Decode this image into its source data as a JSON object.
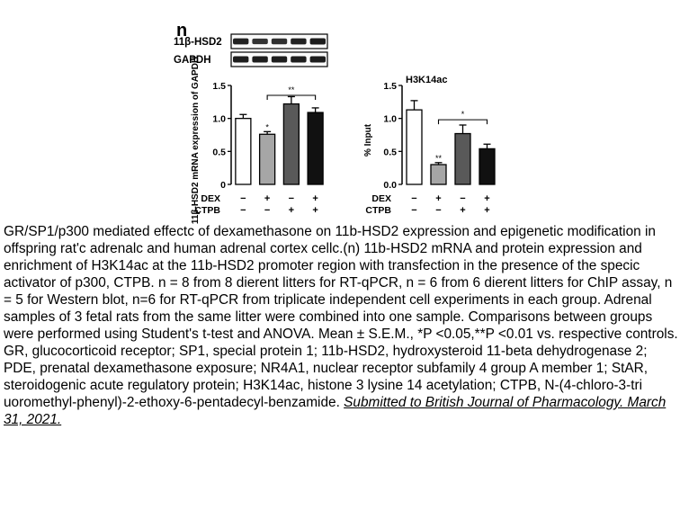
{
  "panel_label": "n",
  "blot": {
    "rows": [
      {
        "label": "11β-HSD2",
        "band_intensity": [
          0.95,
          0.75,
          0.8,
          0.95,
          1.0
        ]
      },
      {
        "label": "GAPDH",
        "band_intensity": [
          1.0,
          1.0,
          1.0,
          1.0,
          1.0
        ]
      }
    ]
  },
  "chart_data": [
    {
      "type": "bar",
      "title": "",
      "ylabel": "11β-HSD2 mRNA expression of GAPDH",
      "ylim": [
        0,
        1.5
      ],
      "yticks": [
        0,
        0.5,
        1.0,
        1.5
      ],
      "ytick_labels": [
        "0",
        "0.5",
        "1.0",
        "1.5"
      ],
      "categories": [
        "group1",
        "group2",
        "group3",
        "group4"
      ],
      "values": [
        1.0,
        0.76,
        1.22,
        1.09
      ],
      "errors": [
        0.06,
        0.04,
        0.11,
        0.07
      ],
      "colors": [
        "#ffffff",
        "#a6a6a6",
        "#595959",
        "#111111"
      ],
      "bar_marks": [
        "",
        "*",
        "",
        ""
      ],
      "bracket": {
        "from": 1,
        "to": 3,
        "label": "**",
        "y": 1.35
      },
      "conditions": [
        {
          "name": "DEX",
          "values": [
            "−",
            "+",
            "−",
            "+"
          ]
        },
        {
          "name": "CTPB",
          "values": [
            "−",
            "−",
            "+",
            "+"
          ]
        }
      ]
    },
    {
      "type": "bar",
      "title": "H3K14ac",
      "ylabel": "% Input",
      "ylim": [
        0,
        1.5
      ],
      "yticks": [
        0,
        0.5,
        1.0,
        1.5
      ],
      "ytick_labels": [
        "0.0",
        "0.5",
        "1.0",
        "1.5"
      ],
      "categories": [
        "group1",
        "group2",
        "group3",
        "group4"
      ],
      "values": [
        1.13,
        0.3,
        0.77,
        0.54
      ],
      "errors": [
        0.14,
        0.03,
        0.13,
        0.07
      ],
      "colors": [
        "#ffffff",
        "#a6a6a6",
        "#595959",
        "#111111"
      ],
      "bar_marks": [
        "",
        "**",
        "",
        ""
      ],
      "bracket": {
        "from": 1,
        "to": 3,
        "label": "*",
        "y": 0.98
      },
      "conditions": [
        {
          "name": "DEX",
          "values": [
            "−",
            "+",
            "−",
            "+"
          ]
        },
        {
          "name": "CTPB",
          "values": [
            "−",
            "−",
            "+",
            "+"
          ]
        }
      ]
    }
  ],
  "caption": {
    "text": "GR/SP1/p300 mediated effectc of dexamethasone on 11b-HSD2 expression and epigenetic modification in offspring rat'c adrenalc and human adrenal cortex cellc.(n) 11b-HSD2 mRNA and protein expression and enrichment of H3K14ac at the 11b-HSD2 promoter region with transfection in the presence of the specic activator of p300, CTPB. n = 8 from 8 dierent litters for RT-qPCR, n = 6 from 6 dierent litters for ChIP assay, n = 5 for Western blot, n=6 for RT-qPCR from triplicate independent cell experiments in each group. Adrenal samples of 3 fetal rats from the same litter were combined into one sample. Comparisons between groups were performed using Student's t-test and ANOVA. Mean ± S.E.M., *P <0.05,**P <0.01 vs. respective controls. GR, glucocorticoid receptor; SP1, special protein 1; 11b-HSD2, hydroxysteroid 11-beta dehydrogenase 2; PDE, prenatal dexamethasone exposure; NR4A1, nuclear receptor subfamily 4 group A member 1; StAR, steroidogenic acute regulatory protein; H3K14ac, histone 3 lysine 14 acetylation; CTPB, N-(4-chloro-3-tri uoromethyl-phenyl)-2-ethoxy-6-pentadecyl-benzamide.",
    "citation": "Submitted to British Journal of Pharmacology. March 31, 2021."
  }
}
